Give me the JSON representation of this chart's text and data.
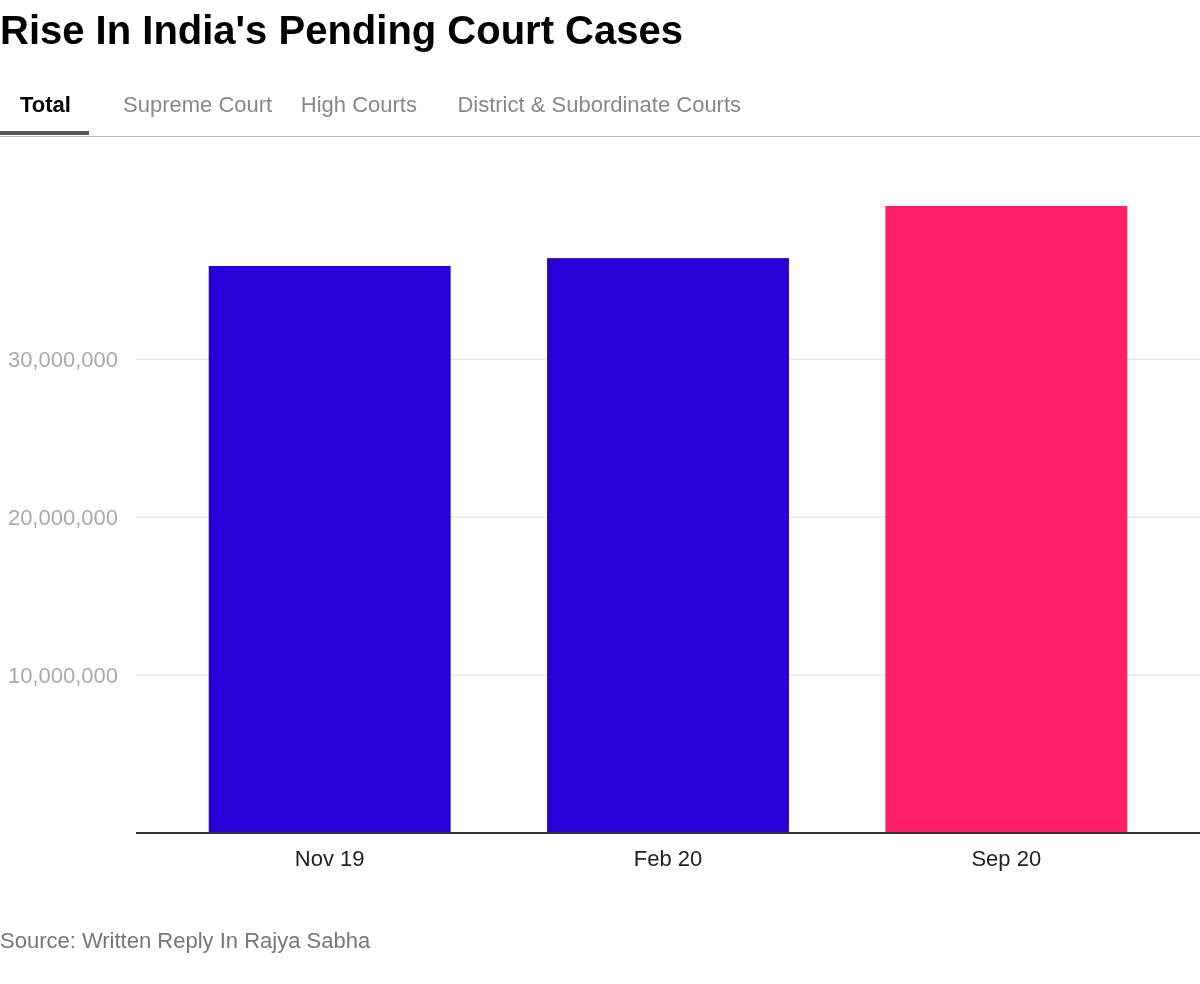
{
  "chart_data": {
    "type": "bar",
    "title": "Rise In India's Pending Court Cases",
    "categories": [
      "Nov 19",
      "Feb 20",
      "Sep 20"
    ],
    "values": [
      35900000,
      36400000,
      39700000
    ],
    "colors": [
      "#2900d8",
      "#2900d8",
      "#fe1f66"
    ],
    "ylim": [
      0,
      39700000
    ],
    "yticks": [
      {
        "value": 0,
        "label": null
      },
      {
        "value": 10000000,
        "label": "10,000,000"
      },
      {
        "value": 20000000,
        "label": "20,000,000"
      },
      {
        "value": 30000000,
        "label": "30,000,000"
      }
    ],
    "grid": "y",
    "annotations": [
      "Total",
      "Supreme Court",
      "High Courts",
      "District & Subordinate Courts",
      "Source: Written Reply In Rajya Sabha"
    ]
  }
}
